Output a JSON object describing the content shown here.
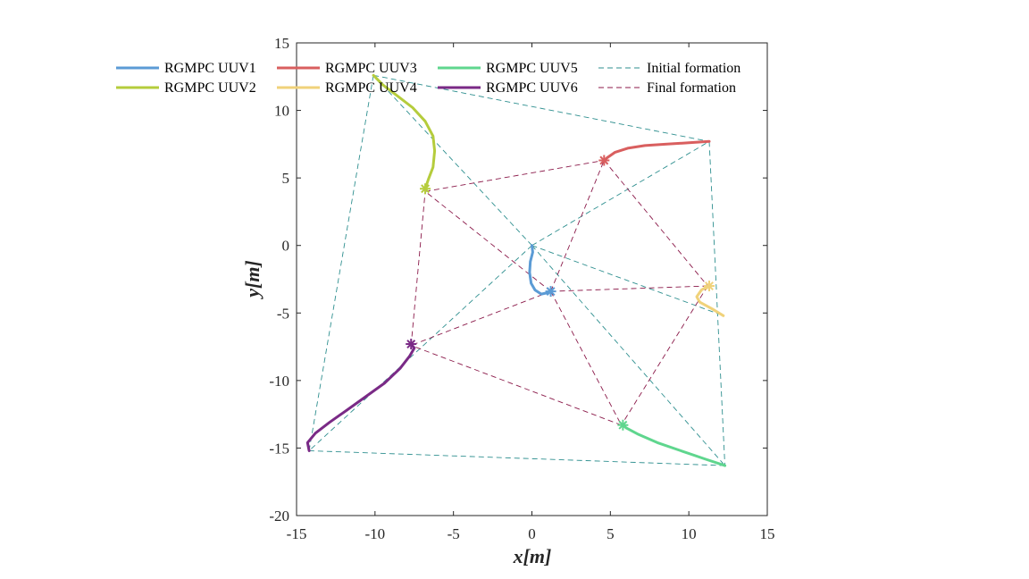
{
  "chart_data": {
    "type": "line",
    "xlabel": "x[m]",
    "ylabel": "y[m]",
    "xlim": [
      -15,
      15
    ],
    "ylim": [
      -20,
      15
    ],
    "xticks": [
      -15,
      -10,
      -5,
      0,
      5,
      10,
      15
    ],
    "yticks": [
      15,
      10,
      5,
      0,
      -5,
      -10,
      -15,
      -20
    ],
    "grid": false,
    "legend": "top-left, inside, 4 columns",
    "series": [
      {
        "name": "RGMPC UUV1",
        "color": "#5b9bd5",
        "kind": "trajectory",
        "points": [
          [
            0,
            0
          ],
          [
            0.05,
            -0.5
          ],
          [
            -0.1,
            -1.2
          ],
          [
            -0.15,
            -2.0
          ],
          [
            -0.05,
            -2.8
          ],
          [
            0.2,
            -3.3
          ],
          [
            0.6,
            -3.6
          ],
          [
            1.0,
            -3.5
          ],
          [
            1.2,
            -3.4
          ]
        ]
      },
      {
        "name": "RGMPC UUV2",
        "color": "#b5cc3c",
        "kind": "trajectory",
        "points": [
          [
            -10.1,
            12.6
          ],
          [
            -9.5,
            11.9
          ],
          [
            -8.6,
            11.1
          ],
          [
            -7.6,
            10.2
          ],
          [
            -6.8,
            9.2
          ],
          [
            -6.3,
            8.1
          ],
          [
            -6.2,
            7.0
          ],
          [
            -6.3,
            5.8
          ],
          [
            -6.6,
            4.9
          ],
          [
            -6.8,
            4.2
          ]
        ]
      },
      {
        "name": "RGMPC UUV3",
        "color": "#d95f5f",
        "kind": "trajectory",
        "points": [
          [
            11.3,
            7.7
          ],
          [
            10.0,
            7.6
          ],
          [
            8.5,
            7.5
          ],
          [
            7.2,
            7.4
          ],
          [
            6.1,
            7.2
          ],
          [
            5.3,
            6.9
          ],
          [
            4.8,
            6.5
          ],
          [
            4.6,
            6.3
          ]
        ]
      },
      {
        "name": "RGMPC UUV4",
        "color": "#f0d27a",
        "kind": "trajectory",
        "points": [
          [
            12.2,
            -5.2
          ],
          [
            11.5,
            -4.7
          ],
          [
            10.7,
            -4.2
          ],
          [
            10.5,
            -3.8
          ],
          [
            10.8,
            -3.3
          ],
          [
            11.1,
            -3.1
          ],
          [
            11.3,
            -3.0
          ]
        ]
      },
      {
        "name": "RGMPC UUV5",
        "color": "#5fd68e",
        "kind": "trajectory",
        "points": [
          [
            12.3,
            -16.3
          ],
          [
            11.0,
            -15.8
          ],
          [
            9.5,
            -15.2
          ],
          [
            8.0,
            -14.6
          ],
          [
            6.8,
            -14.0
          ],
          [
            6.0,
            -13.5
          ],
          [
            5.8,
            -13.3
          ]
        ]
      },
      {
        "name": "RGMPC UUV6",
        "color": "#7a2a86",
        "kind": "trajectory",
        "points": [
          [
            -14.2,
            -15.2
          ],
          [
            -14.3,
            -14.6
          ],
          [
            -13.8,
            -13.9
          ],
          [
            -12.9,
            -13.1
          ],
          [
            -11.8,
            -12.2
          ],
          [
            -10.6,
            -11.2
          ],
          [
            -9.4,
            -10.2
          ],
          [
            -8.4,
            -9.1
          ],
          [
            -7.8,
            -8.2
          ],
          [
            -7.5,
            -7.6
          ],
          [
            -7.7,
            -7.3
          ]
        ]
      },
      {
        "name": "Initial formation",
        "color": "#2e8f8f",
        "kind": "formation",
        "points": [
          [
            0,
            0
          ],
          [
            -10.1,
            12.6
          ],
          [
            11.3,
            7.7
          ],
          [
            12.2,
            -5.2
          ],
          [
            12.3,
            -16.3
          ],
          [
            -14.2,
            -15.2
          ]
        ],
        "edges": [
          [
            0,
            1
          ],
          [
            0,
            2
          ],
          [
            0,
            3
          ],
          [
            0,
            4
          ],
          [
            0,
            5
          ],
          [
            1,
            2
          ],
          [
            2,
            4
          ],
          [
            4,
            5
          ],
          [
            5,
            1
          ]
        ]
      },
      {
        "name": "Final formation",
        "color": "#8b1a4a",
        "kind": "formation",
        "points": [
          [
            1.2,
            -3.4
          ],
          [
            -6.8,
            4.0
          ],
          [
            4.6,
            6.3
          ],
          [
            11.2,
            -3.0
          ],
          [
            5.7,
            -13.3
          ],
          [
            -7.7,
            -7.4
          ]
        ],
        "edges": [
          [
            0,
            1
          ],
          [
            0,
            2
          ],
          [
            0,
            3
          ],
          [
            0,
            4
          ],
          [
            0,
            5
          ],
          [
            1,
            2
          ],
          [
            2,
            3
          ],
          [
            3,
            4
          ],
          [
            4,
            5
          ],
          [
            5,
            1
          ]
        ]
      }
    ]
  }
}
